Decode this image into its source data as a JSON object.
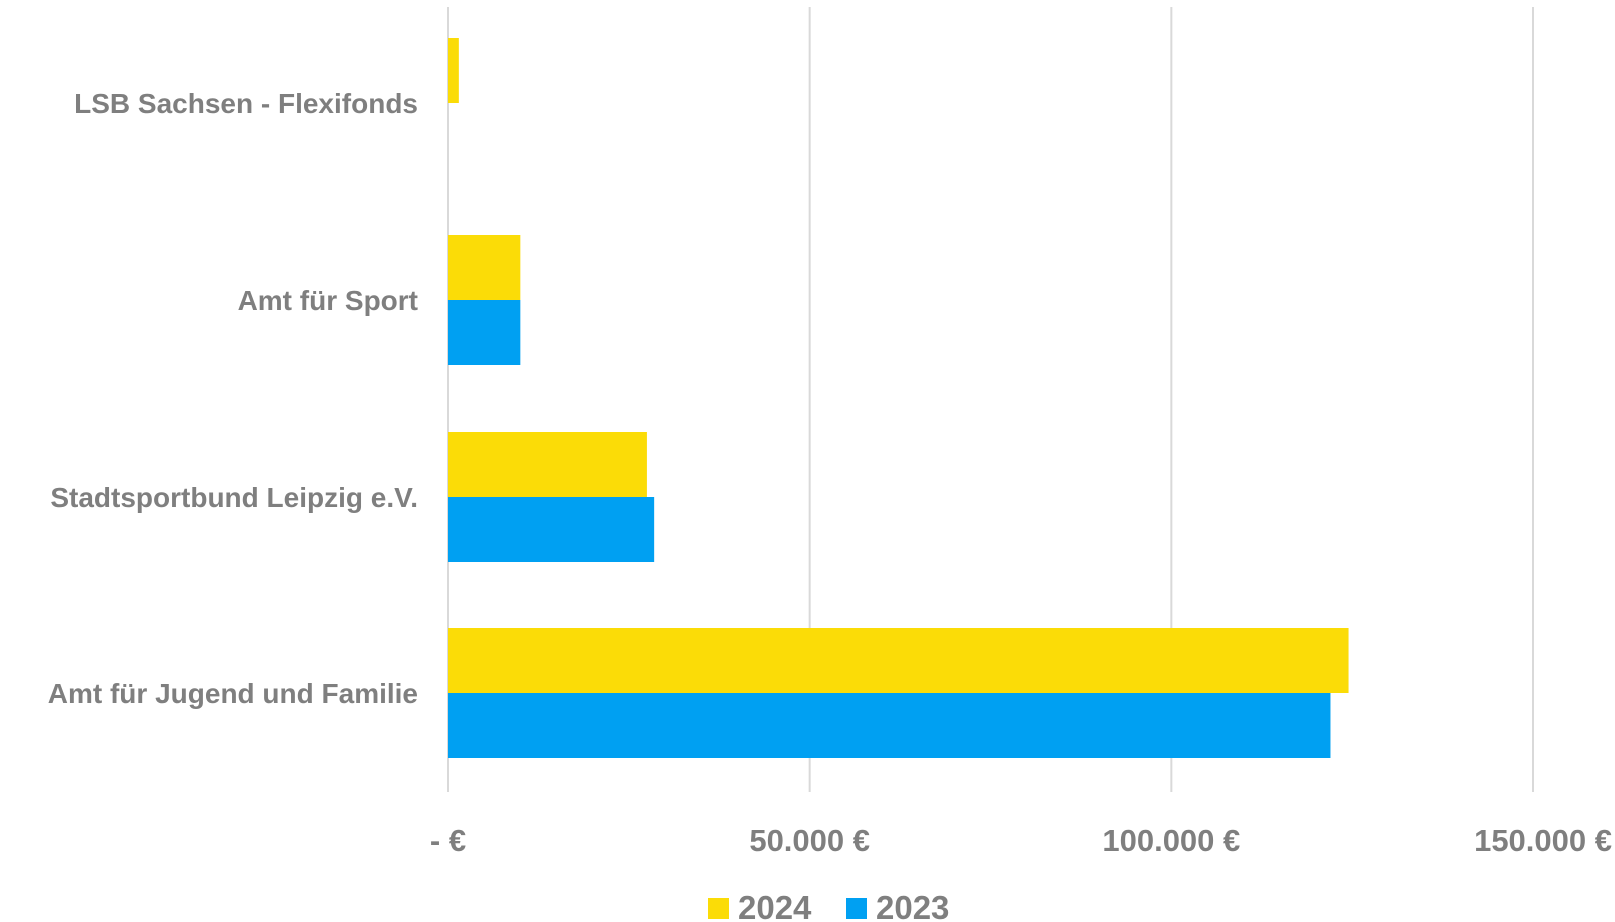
{
  "chart_data": {
    "type": "bar",
    "orientation": "horizontal",
    "categories": [
      "LSB Sachsen - Flexifonds",
      "Amt für Sport",
      "Stadtsportbund Leipzig e.V.",
      "Amt für Jugend und Familie"
    ],
    "series": [
      {
        "name": "2024",
        "color": "#FBDC07",
        "values": [
          1500,
          10000,
          27500,
          124500
        ]
      },
      {
        "name": "2023",
        "color": "#00A0F2",
        "values": [
          0,
          10000,
          28500,
          122000
        ]
      }
    ],
    "xlim": [
      0,
      150000
    ],
    "ticks": [
      0,
      50000,
      100000,
      150000
    ],
    "tick_labels": [
      "- €",
      "50.000 €",
      "100.000 €",
      "150.000 €"
    ],
    "grid": true,
    "legend_position": "bottom",
    "title": "",
    "xlabel": "",
    "ylabel": ""
  }
}
